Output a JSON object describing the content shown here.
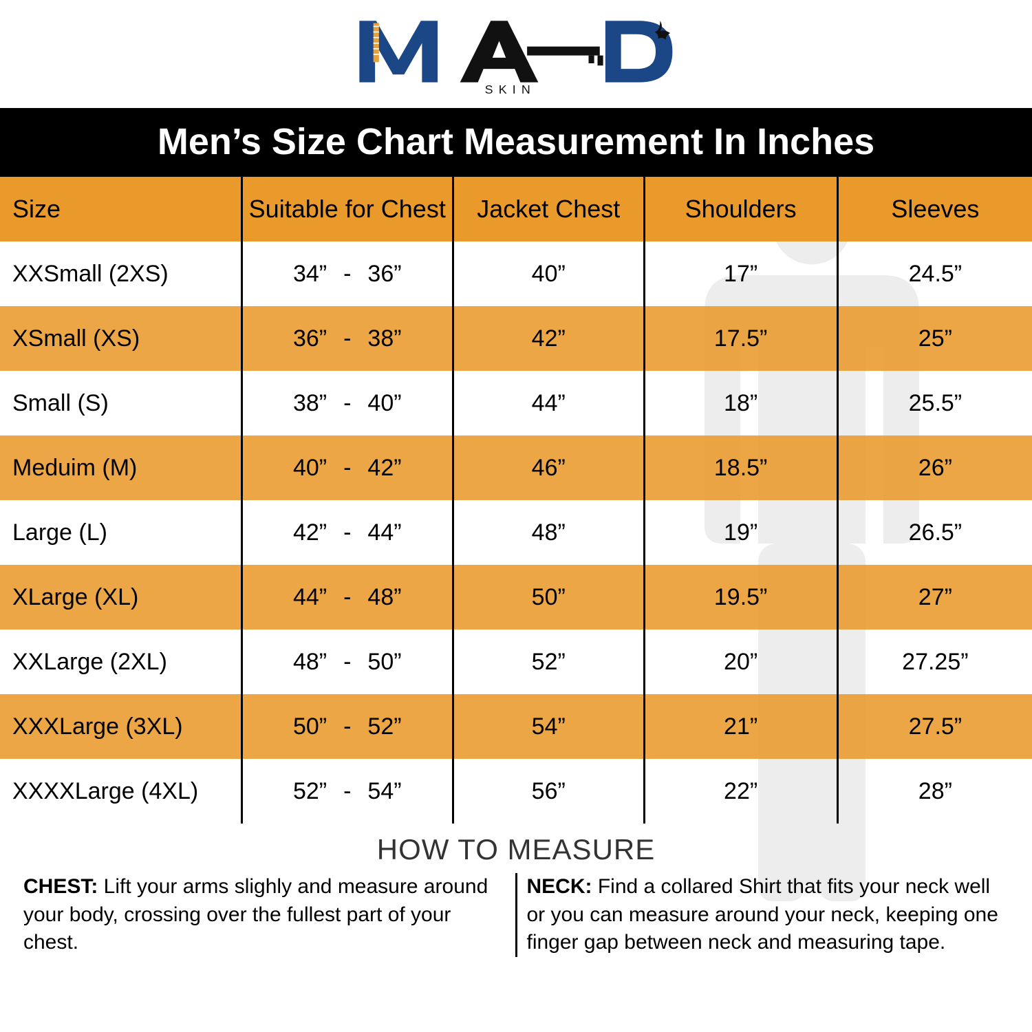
{
  "brand": {
    "name": "MAD",
    "sub": "SKIN"
  },
  "title": "Men’s Size Chart Measurement In Inches",
  "colors": {
    "title_bg": "#000000",
    "title_fg": "#ffffff",
    "header_bg": "#e99a2b",
    "stripe_bg": "#e99a2b",
    "border": "#000000",
    "logo_navy": "#1b4786",
    "logo_orange": "#e6a238"
  },
  "columns": [
    "Size",
    "Suitable for Chest",
    "Jacket Chest",
    "Shoulders",
    "Sleeves"
  ],
  "rows": [
    {
      "size": "XXSmall (2XS)",
      "chest_lo": "34”",
      "chest_hi": "36”",
      "jacket": "40”",
      "shoulders": "17”",
      "sleeves": "24.5”"
    },
    {
      "size": "XSmall (XS)",
      "chest_lo": "36”",
      "chest_hi": "38”",
      "jacket": "42”",
      "shoulders": "17.5”",
      "sleeves": "25”"
    },
    {
      "size": "Small (S)",
      "chest_lo": "38”",
      "chest_hi": "40”",
      "jacket": "44”",
      "shoulders": "18”",
      "sleeves": "25.5”"
    },
    {
      "size": "Meduim (M)",
      "chest_lo": "40”",
      "chest_hi": "42”",
      "jacket": "46”",
      "shoulders": "18.5”",
      "sleeves": "26”"
    },
    {
      "size": "Large (L)",
      "chest_lo": "42”",
      "chest_hi": "44”",
      "jacket": "48”",
      "shoulders": "19”",
      "sleeves": "26.5”"
    },
    {
      "size": "XLarge (XL)",
      "chest_lo": "44”",
      "chest_hi": "48”",
      "jacket": "50”",
      "shoulders": "19.5”",
      "sleeves": "27”"
    },
    {
      "size": "XXLarge (2XL)",
      "chest_lo": "48”",
      "chest_hi": "50”",
      "jacket": "52”",
      "shoulders": "20”",
      "sleeves": "27.25”"
    },
    {
      "size": "XXXLarge (3XL)",
      "chest_lo": "50”",
      "chest_hi": "52”",
      "jacket": "54”",
      "shoulders": "21”",
      "sleeves": "27.5”"
    },
    {
      "size": "XXXXLarge (4XL)",
      "chest_lo": "52”",
      "chest_hi": "54”",
      "jacket": "56”",
      "shoulders": "22”",
      "sleeves": "28”"
    }
  ],
  "howto": {
    "title": "HOW TO MEASURE",
    "chest_label": "CHEST:",
    "chest_text": " Lift your arms slighly and measure around your body, crossing over the fullest part of your chest.",
    "neck_label": "NECK:",
    "neck_text": " Find a collared Shirt that fits your neck well or you can measure around your neck, keeping one finger gap between neck and measuring tape."
  }
}
